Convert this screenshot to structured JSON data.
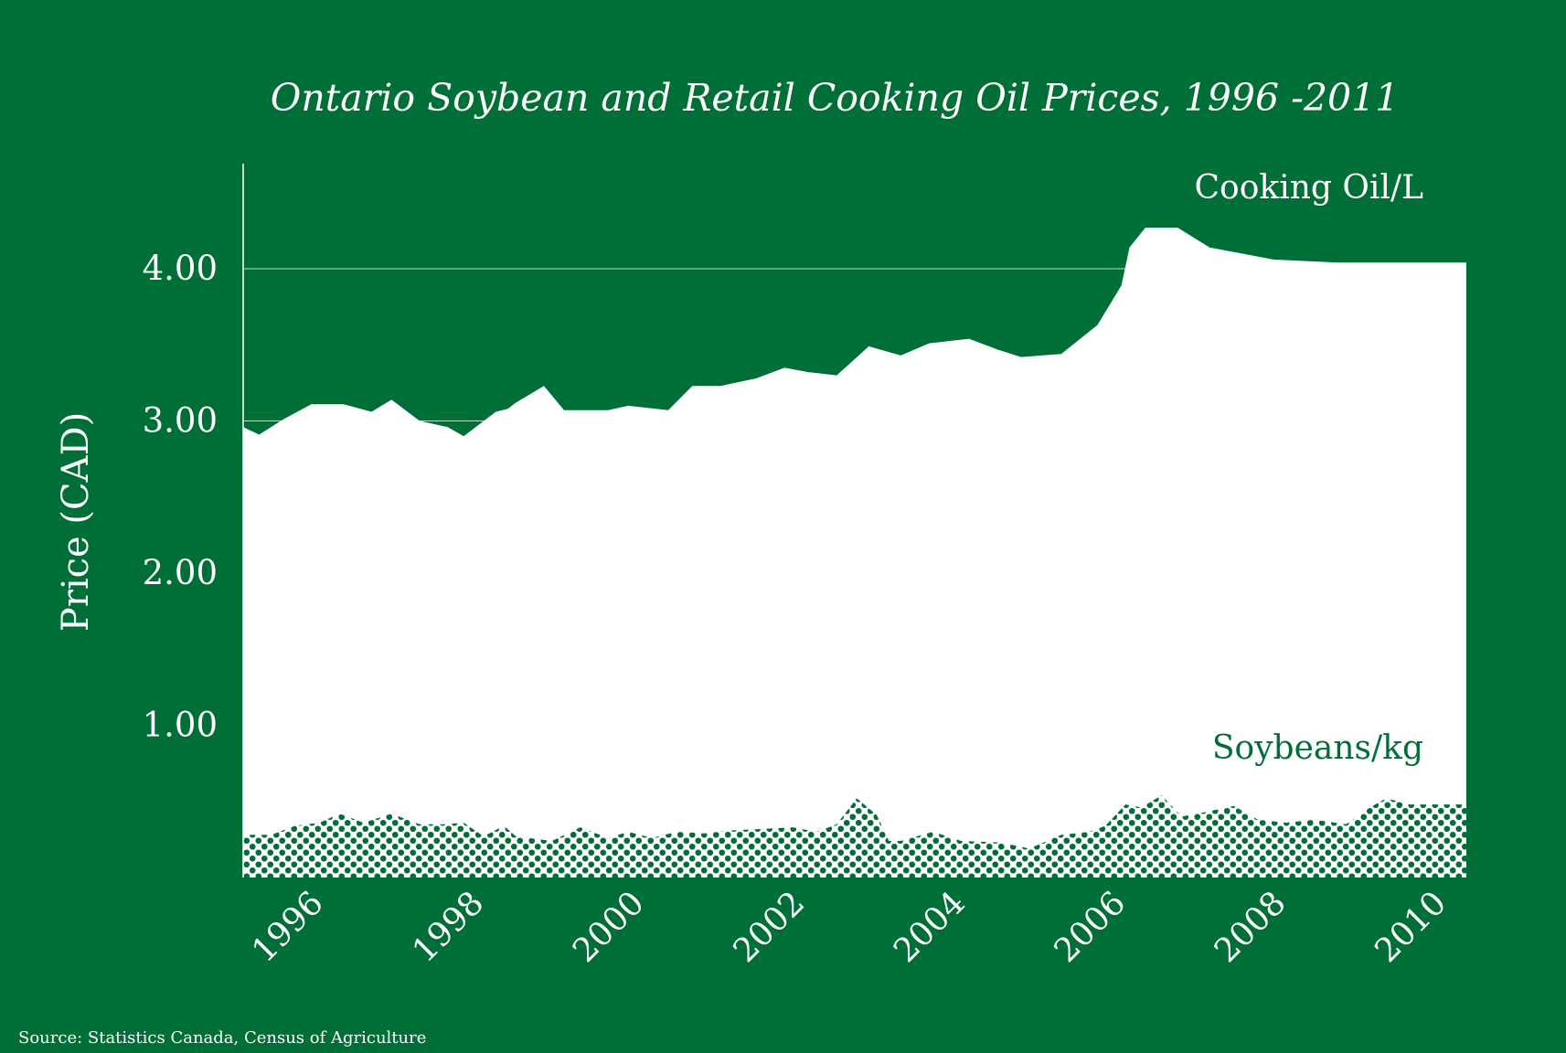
{
  "chart_data": {
    "type": "area",
    "title": "Ontario Soybean and Retail Cooking Oil Prices, 1996 -2011",
    "ylabel": "Price (CAD)",
    "xlabel": "",
    "ylim": [
      0,
      4.7
    ],
    "xlim": [
      1995.55,
      2010.8
    ],
    "y_ticks": [
      "1.00",
      "2.00",
      "3.00",
      "4.00"
    ],
    "y_tick_values": [
      1,
      2,
      3,
      4
    ],
    "x_ticks": [
      "1996",
      "1998",
      "2000",
      "2002",
      "2004",
      "2006",
      "2008",
      "2010"
    ],
    "x_tick_values": [
      1996,
      1998,
      2000,
      2002,
      2004,
      2006,
      2008,
      2010
    ],
    "gridlines_at": [
      3,
      4
    ],
    "legend": "none",
    "series": [
      {
        "name": "Cooking Oil/L",
        "color": "#ffffff",
        "fill": "solid",
        "points": [
          [
            1995.55,
            2.96
          ],
          [
            1995.75,
            2.91
          ],
          [
            1996.05,
            3.01
          ],
          [
            1996.4,
            3.11
          ],
          [
            1996.8,
            3.11
          ],
          [
            1997.15,
            3.06
          ],
          [
            1997.4,
            3.14
          ],
          [
            1997.75,
            3.0
          ],
          [
            1998.1,
            2.96
          ],
          [
            1998.3,
            2.9
          ],
          [
            1998.7,
            3.06
          ],
          [
            1998.85,
            3.08
          ],
          [
            1998.95,
            3.12
          ],
          [
            1999.3,
            3.23
          ],
          [
            1999.55,
            3.07
          ],
          [
            1999.85,
            3.07
          ],
          [
            2000.1,
            3.07
          ],
          [
            2000.35,
            3.1
          ],
          [
            2000.85,
            3.07
          ],
          [
            2001.15,
            3.23
          ],
          [
            2001.5,
            3.23
          ],
          [
            2001.95,
            3.28
          ],
          [
            2002.3,
            3.35
          ],
          [
            2002.6,
            3.32
          ],
          [
            2002.95,
            3.3
          ],
          [
            2003.35,
            3.49
          ],
          [
            2003.75,
            3.43
          ],
          [
            2004.1,
            3.51
          ],
          [
            2004.6,
            3.54
          ],
          [
            2004.95,
            3.47
          ],
          [
            2005.25,
            3.42
          ],
          [
            2005.75,
            3.44
          ],
          [
            2006.2,
            3.63
          ],
          [
            2006.5,
            3.89
          ],
          [
            2006.6,
            4.14
          ],
          [
            2006.8,
            4.27
          ],
          [
            2007.2,
            4.27
          ],
          [
            2007.6,
            4.14
          ],
          [
            2008.1,
            4.09
          ],
          [
            2008.4,
            4.06
          ],
          [
            2009.2,
            4.04
          ],
          [
            2010.8,
            4.04
          ]
        ]
      },
      {
        "name": "Soybeans/kg",
        "color": "#006f37",
        "fill": "dotted",
        "points": [
          [
            1995.55,
            0.28
          ],
          [
            1995.9,
            0.28
          ],
          [
            1996.2,
            0.34
          ],
          [
            1996.5,
            0.36
          ],
          [
            1996.75,
            0.42
          ],
          [
            1997.05,
            0.36
          ],
          [
            1997.4,
            0.42
          ],
          [
            1997.75,
            0.35
          ],
          [
            1998.05,
            0.35
          ],
          [
            1998.3,
            0.36
          ],
          [
            1998.55,
            0.27
          ],
          [
            1998.8,
            0.34
          ],
          [
            1998.95,
            0.27
          ],
          [
            1999.4,
            0.24
          ],
          [
            1999.75,
            0.33
          ],
          [
            2000.1,
            0.26
          ],
          [
            2000.35,
            0.3
          ],
          [
            2000.65,
            0.26
          ],
          [
            2000.95,
            0.3
          ],
          [
            2001.3,
            0.29
          ],
          [
            2001.65,
            0.31
          ],
          [
            2002.05,
            0.32
          ],
          [
            2002.4,
            0.33
          ],
          [
            2002.7,
            0.3
          ],
          [
            2002.95,
            0.35
          ],
          [
            2003.2,
            0.52
          ],
          [
            2003.45,
            0.41
          ],
          [
            2003.6,
            0.24
          ],
          [
            2003.75,
            0.24
          ],
          [
            2004.15,
            0.3
          ],
          [
            2004.5,
            0.24
          ],
          [
            2005.0,
            0.23
          ],
          [
            2005.35,
            0.19
          ],
          [
            2005.75,
            0.28
          ],
          [
            2006.1,
            0.3
          ],
          [
            2006.3,
            0.34
          ],
          [
            2006.55,
            0.48
          ],
          [
            2006.75,
            0.46
          ],
          [
            2007.0,
            0.54
          ],
          [
            2007.25,
            0.4
          ],
          [
            2007.55,
            0.43
          ],
          [
            2007.9,
            0.47
          ],
          [
            2008.2,
            0.38
          ],
          [
            2008.55,
            0.36
          ],
          [
            2008.9,
            0.38
          ],
          [
            2009.3,
            0.35
          ],
          [
            2009.6,
            0.46
          ],
          [
            2009.8,
            0.52
          ],
          [
            2010.1,
            0.48
          ],
          [
            2010.8,
            0.48
          ]
        ]
      }
    ],
    "annotations": {
      "oil_label": "Cooking Oil/L",
      "soy_label": "Soybeans/kg"
    },
    "source": "Source: Statistics Canada, Census of Agriculture"
  },
  "colors": {
    "background": "#006f37",
    "foreground": "#ffffff"
  }
}
